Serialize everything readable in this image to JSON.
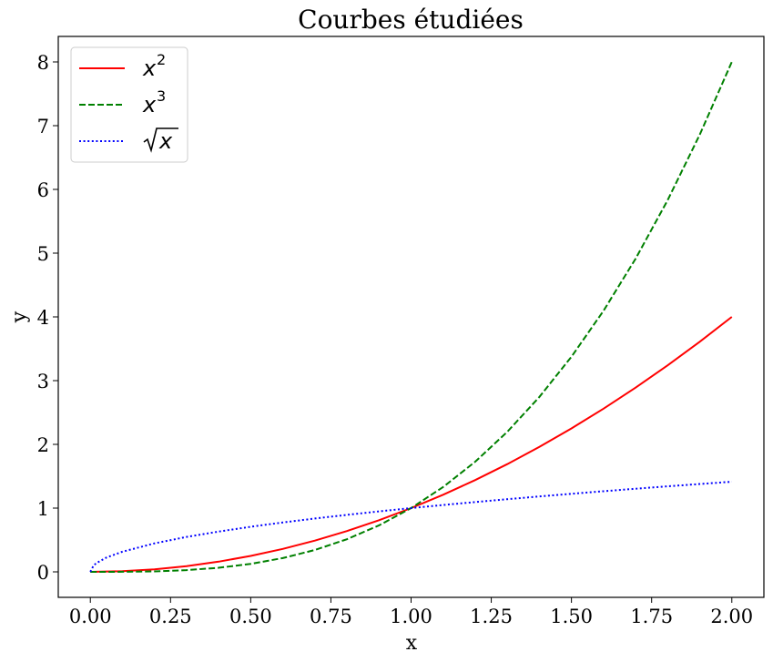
{
  "chart_data": {
    "type": "line",
    "title": "Courbes étudiées",
    "xlabel": "x",
    "ylabel": "y",
    "xlim": [
      -0.1,
      2.1
    ],
    "ylim": [
      -0.4,
      8.4
    ],
    "xticks": [
      "0.00",
      "0.25",
      "0.50",
      "0.75",
      "1.00",
      "1.25",
      "1.50",
      "1.75",
      "2.00"
    ],
    "yticks": [
      "0",
      "1",
      "2",
      "3",
      "4",
      "5",
      "6",
      "7",
      "8"
    ],
    "grid": false,
    "legend_position": "top-left",
    "series": [
      {
        "name": "x^2",
        "legend_base": "x",
        "legend_sup": "2",
        "color": "#ff0000",
        "style": "solid",
        "x": [
          0,
          0.1,
          0.2,
          0.3,
          0.4,
          0.5,
          0.6,
          0.7,
          0.8,
          0.9,
          1.0,
          1.1,
          1.2,
          1.3,
          1.4,
          1.5,
          1.6,
          1.7,
          1.8,
          1.9,
          2.0
        ],
        "y": [
          0,
          0.01,
          0.04,
          0.09,
          0.16,
          0.25,
          0.36,
          0.49,
          0.64,
          0.81,
          1.0,
          1.21,
          1.44,
          1.69,
          1.96,
          2.25,
          2.56,
          2.89,
          3.24,
          3.61,
          4.0
        ]
      },
      {
        "name": "x^3",
        "legend_base": "x",
        "legend_sup": "3",
        "color": "#008000",
        "style": "dashed",
        "x": [
          0,
          0.1,
          0.2,
          0.3,
          0.4,
          0.5,
          0.6,
          0.7,
          0.8,
          0.9,
          1.0,
          1.1,
          1.2,
          1.3,
          1.4,
          1.5,
          1.6,
          1.7,
          1.8,
          1.9,
          2.0
        ],
        "y": [
          0,
          0.001,
          0.008,
          0.027,
          0.064,
          0.125,
          0.216,
          0.343,
          0.512,
          0.729,
          1.0,
          1.331,
          1.728,
          2.197,
          2.744,
          3.375,
          4.096,
          4.913,
          5.832,
          6.859,
          8.0
        ]
      },
      {
        "name": "√x",
        "legend_base": "x",
        "legend_sqrt": true,
        "color": "#0000ff",
        "style": "dotted",
        "x": [
          0,
          0.01,
          0.02,
          0.05,
          0.1,
          0.2,
          0.3,
          0.4,
          0.5,
          0.6,
          0.7,
          0.8,
          0.9,
          1.0,
          1.1,
          1.2,
          1.3,
          1.4,
          1.5,
          1.6,
          1.7,
          1.8,
          1.9,
          2.0
        ],
        "y": [
          0,
          0.1,
          0.141,
          0.224,
          0.316,
          0.447,
          0.548,
          0.632,
          0.707,
          0.775,
          0.837,
          0.894,
          0.949,
          1.0,
          1.049,
          1.095,
          1.14,
          1.183,
          1.225,
          1.265,
          1.304,
          1.342,
          1.378,
          1.414
        ]
      }
    ]
  }
}
